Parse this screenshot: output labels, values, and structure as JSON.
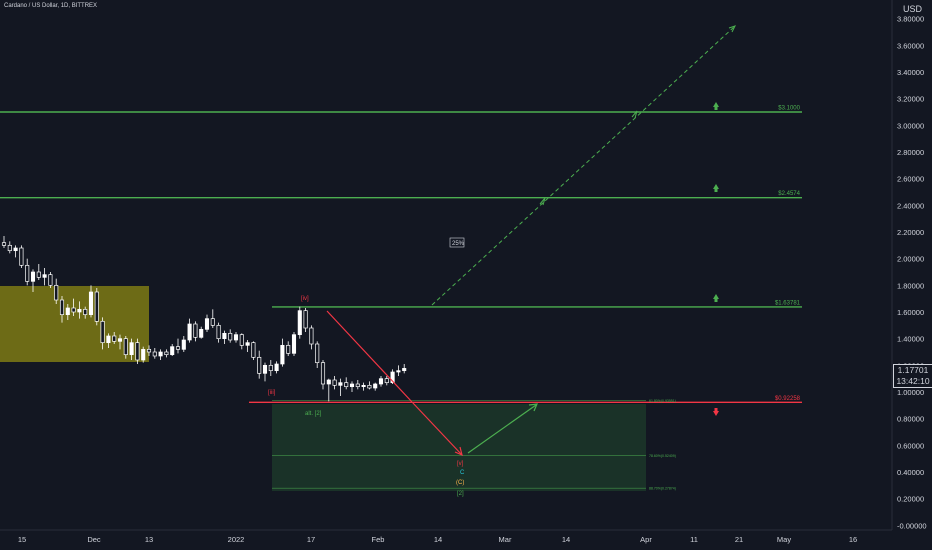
{
  "header": {
    "symbol_title": "Cardano / US Dollar, 1D, BITTREX",
    "currency": "USD"
  },
  "last_price": {
    "value": "1.17701",
    "countdown": "13:42:10"
  },
  "colors": {
    "background": "#131722",
    "axis_text": "#d1d4dc",
    "green_level": "#4caf50",
    "red_level": "#f23645",
    "olive_zone": "#7e7a14",
    "green_zone": "#1d3a2a",
    "candle_up": "#ffffff",
    "candle_down": "#ffffff"
  },
  "chart_data": {
    "type": "candlestick",
    "y_ticks": [
      "3.80000",
      "3.60000",
      "3.40000",
      "3.20000",
      "3.00000",
      "2.80000",
      "2.60000",
      "2.40000",
      "2.20000",
      "2.00000",
      "1.80000",
      "1.60000",
      "1.40000",
      "1.20000",
      "1.00000",
      "0.80000",
      "0.60000",
      "0.40000",
      "0.20000",
      "-0.00000"
    ],
    "ylim": [
      -0.02,
      3.88
    ],
    "x_ticks": [
      "15",
      "Dec",
      "13",
      "2022",
      "17",
      "Feb",
      "14",
      "Mar",
      "14",
      "Apr",
      "11",
      "21",
      "May",
      "16"
    ],
    "levels": [
      {
        "label": "$3.1000",
        "value": 3.1,
        "kind": "target"
      },
      {
        "label": "$2.4574",
        "value": 2.4574,
        "kind": "target"
      },
      {
        "label": "$1.63781",
        "value": 1.63781,
        "kind": "target"
      },
      {
        "label": "$0.92258",
        "value": 0.92258,
        "kind": "stop"
      }
    ],
    "fib_labels": [
      {
        "text": "61.80%(0.93551)",
        "value": 0.93551
      },
      {
        "text": "78.60%(0.52409)",
        "value": 0.52409
      },
      {
        "text": "88.70%(0.27874)",
        "value": 0.27874
      }
    ],
    "wave_labels": [
      {
        "text": "[iv]",
        "color": "red"
      },
      {
        "text": "[iii]",
        "color": "red"
      },
      {
        "text": "alt. [2]",
        "color": "green"
      },
      {
        "text": "[v]",
        "color": "red"
      },
      {
        "text": "C",
        "color": "cyan"
      },
      {
        "text": "(C)",
        "color": "orange"
      },
      {
        "text": "[2]",
        "color": "green"
      }
    ],
    "annotation": "25%",
    "candles": [
      {
        "o": 2.12,
        "h": 2.17,
        "l": 2.08,
        "c": 2.1
      },
      {
        "o": 2.1,
        "h": 2.13,
        "l": 2.04,
        "c": 2.06
      },
      {
        "o": 2.06,
        "h": 2.1,
        "l": 2.01,
        "c": 2.08
      },
      {
        "o": 2.08,
        "h": 2.1,
        "l": 1.93,
        "c": 1.95
      },
      {
        "o": 1.95,
        "h": 2.0,
        "l": 1.8,
        "c": 1.83
      },
      {
        "o": 1.83,
        "h": 1.92,
        "l": 1.75,
        "c": 1.9
      },
      {
        "o": 1.9,
        "h": 1.96,
        "l": 1.84,
        "c": 1.86
      },
      {
        "o": 1.86,
        "h": 1.93,
        "l": 1.8,
        "c": 1.88
      },
      {
        "o": 1.88,
        "h": 1.9,
        "l": 1.78,
        "c": 1.8
      },
      {
        "o": 1.8,
        "h": 1.85,
        "l": 1.66,
        "c": 1.69
      },
      {
        "o": 1.69,
        "h": 1.72,
        "l": 1.52,
        "c": 1.58
      },
      {
        "o": 1.58,
        "h": 1.66,
        "l": 1.54,
        "c": 1.63
      },
      {
        "o": 1.63,
        "h": 1.7,
        "l": 1.57,
        "c": 1.6
      },
      {
        "o": 1.6,
        "h": 1.68,
        "l": 1.55,
        "c": 1.62
      },
      {
        "o": 1.62,
        "h": 1.64,
        "l": 1.55,
        "c": 1.58
      },
      {
        "o": 1.58,
        "h": 1.8,
        "l": 1.56,
        "c": 1.75
      },
      {
        "o": 1.75,
        "h": 1.78,
        "l": 1.5,
        "c": 1.53
      },
      {
        "o": 1.53,
        "h": 1.56,
        "l": 1.32,
        "c": 1.37
      },
      {
        "o": 1.37,
        "h": 1.44,
        "l": 1.33,
        "c": 1.42
      },
      {
        "o": 1.42,
        "h": 1.45,
        "l": 1.36,
        "c": 1.38
      },
      {
        "o": 1.38,
        "h": 1.43,
        "l": 1.32,
        "c": 1.4
      },
      {
        "o": 1.4,
        "h": 1.42,
        "l": 1.25,
        "c": 1.28
      },
      {
        "o": 1.28,
        "h": 1.4,
        "l": 1.24,
        "c": 1.37
      },
      {
        "o": 1.37,
        "h": 1.4,
        "l": 1.21,
        "c": 1.24
      },
      {
        "o": 1.24,
        "h": 1.34,
        "l": 1.22,
        "c": 1.32
      },
      {
        "o": 1.32,
        "h": 1.35,
        "l": 1.27,
        "c": 1.3
      },
      {
        "o": 1.3,
        "h": 1.33,
        "l": 1.25,
        "c": 1.27
      },
      {
        "o": 1.27,
        "h": 1.32,
        "l": 1.24,
        "c": 1.3
      },
      {
        "o": 1.3,
        "h": 1.32,
        "l": 1.26,
        "c": 1.28
      },
      {
        "o": 1.28,
        "h": 1.36,
        "l": 1.27,
        "c": 1.34
      },
      {
        "o": 1.34,
        "h": 1.4,
        "l": 1.29,
        "c": 1.32
      },
      {
        "o": 1.32,
        "h": 1.42,
        "l": 1.3,
        "c": 1.39
      },
      {
        "o": 1.39,
        "h": 1.55,
        "l": 1.37,
        "c": 1.51
      },
      {
        "o": 1.51,
        "h": 1.53,
        "l": 1.38,
        "c": 1.41
      },
      {
        "o": 1.41,
        "h": 1.49,
        "l": 1.4,
        "c": 1.47
      },
      {
        "o": 1.47,
        "h": 1.58,
        "l": 1.45,
        "c": 1.55
      },
      {
        "o": 1.55,
        "h": 1.62,
        "l": 1.48,
        "c": 1.5
      },
      {
        "o": 1.5,
        "h": 1.52,
        "l": 1.37,
        "c": 1.4
      },
      {
        "o": 1.4,
        "h": 1.46,
        "l": 1.36,
        "c": 1.44
      },
      {
        "o": 1.44,
        "h": 1.47,
        "l": 1.37,
        "c": 1.39
      },
      {
        "o": 1.39,
        "h": 1.45,
        "l": 1.37,
        "c": 1.43
      },
      {
        "o": 1.43,
        "h": 1.44,
        "l": 1.32,
        "c": 1.35
      },
      {
        "o": 1.35,
        "h": 1.39,
        "l": 1.3,
        "c": 1.37
      },
      {
        "o": 1.37,
        "h": 1.38,
        "l": 1.24,
        "c": 1.26
      },
      {
        "o": 1.26,
        "h": 1.31,
        "l": 1.1,
        "c": 1.14
      },
      {
        "o": 1.14,
        "h": 1.22,
        "l": 1.08,
        "c": 1.2
      },
      {
        "o": 1.2,
        "h": 1.24,
        "l": 1.12,
        "c": 1.16
      },
      {
        "o": 1.16,
        "h": 1.23,
        "l": 1.14,
        "c": 1.21
      },
      {
        "o": 1.21,
        "h": 1.4,
        "l": 1.19,
        "c": 1.35
      },
      {
        "o": 1.35,
        "h": 1.38,
        "l": 1.27,
        "c": 1.29
      },
      {
        "o": 1.29,
        "h": 1.45,
        "l": 1.27,
        "c": 1.43
      },
      {
        "o": 1.43,
        "h": 1.64,
        "l": 1.4,
        "c": 1.61
      },
      {
        "o": 1.61,
        "h": 1.63,
        "l": 1.45,
        "c": 1.48
      },
      {
        "o": 1.48,
        "h": 1.5,
        "l": 1.32,
        "c": 1.36
      },
      {
        "o": 1.36,
        "h": 1.38,
        "l": 1.18,
        "c": 1.22
      },
      {
        "o": 1.22,
        "h": 1.24,
        "l": 1.02,
        "c": 1.06
      },
      {
        "o": 1.06,
        "h": 1.1,
        "l": 0.93,
        "c": 1.09
      },
      {
        "o": 1.09,
        "h": 1.12,
        "l": 1.02,
        "c": 1.05
      },
      {
        "o": 1.05,
        "h": 1.1,
        "l": 0.97,
        "c": 1.07
      },
      {
        "o": 1.07,
        "h": 1.11,
        "l": 1.02,
        "c": 1.04
      },
      {
        "o": 1.04,
        "h": 1.08,
        "l": 1.0,
        "c": 1.06
      },
      {
        "o": 1.06,
        "h": 1.09,
        "l": 1.02,
        "c": 1.04
      },
      {
        "o": 1.04,
        "h": 1.07,
        "l": 1.01,
        "c": 1.05
      },
      {
        "o": 1.05,
        "h": 1.08,
        "l": 1.02,
        "c": 1.03
      },
      {
        "o": 1.03,
        "h": 1.07,
        "l": 1.01,
        "c": 1.06
      },
      {
        "o": 1.06,
        "h": 1.12,
        "l": 1.04,
        "c": 1.1
      },
      {
        "o": 1.1,
        "h": 1.12,
        "l": 1.05,
        "c": 1.07
      },
      {
        "o": 1.07,
        "h": 1.17,
        "l": 1.06,
        "c": 1.15
      },
      {
        "o": 1.15,
        "h": 1.2,
        "l": 1.12,
        "c": 1.16
      },
      {
        "o": 1.16,
        "h": 1.21,
        "l": 1.14,
        "c": 1.177
      }
    ]
  }
}
